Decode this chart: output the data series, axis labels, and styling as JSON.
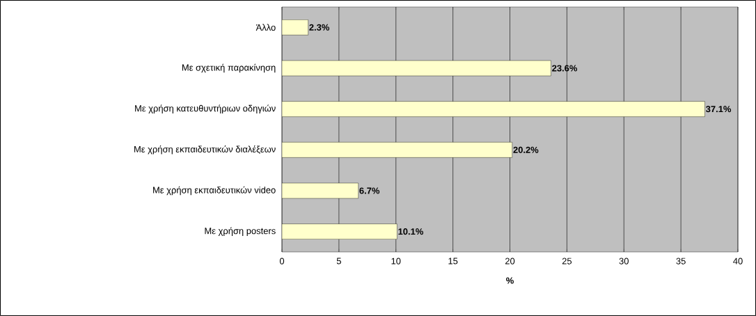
{
  "chart_data": {
    "type": "bar",
    "orientation": "horizontal",
    "xlabel": "%",
    "categories": [
      "Άλλο",
      "Με σχετική παρακίνηση",
      "Με χρήση κατευθυντήριων οδηγιών",
      "Με χρήση εκπαιδευτικών διαλέξεων",
      "Με χρήση  εκπαιδευτικών video",
      "Με χρήση posters"
    ],
    "values": [
      2.3,
      23.6,
      37.1,
      20.2,
      6.7,
      10.1
    ],
    "value_labels": [
      "2.3%",
      "23.6%",
      "37.1%",
      "20.2%",
      "6.7%",
      "10.1%"
    ],
    "color": "#ffffcc",
    "xlim": [
      0,
      40
    ],
    "xticks": [
      0,
      5,
      10,
      15,
      20,
      25,
      30,
      35,
      40
    ],
    "grid": "x"
  }
}
